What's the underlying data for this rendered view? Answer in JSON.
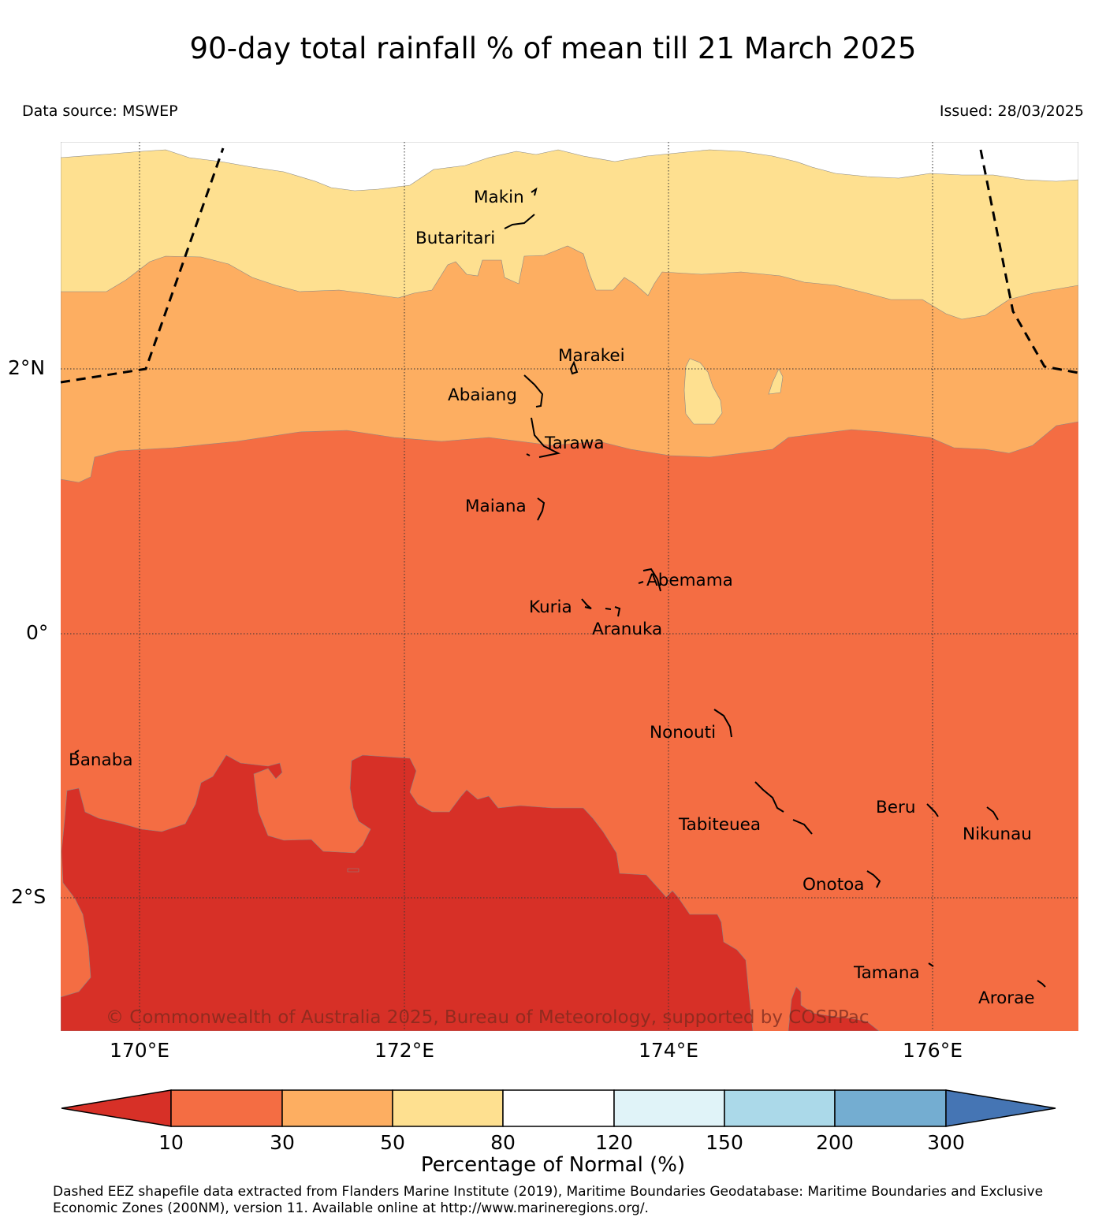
{
  "title": "90-day total rainfall % of mean till 21 March 2025",
  "data_source": "Data source: MSWEP",
  "issued": "Issued: 28/03/2025",
  "lat_labels": [
    "2°N",
    "0°",
    "2°S"
  ],
  "lon_labels": [
    "170°E",
    "172°E",
    "174°E",
    "176°E"
  ],
  "places": [
    "Makin",
    "Butaritari",
    "Marakei",
    "Abaiang",
    "Tarawa",
    "Maiana",
    "Abemama",
    "Kuria",
    "Aranuka",
    "Nonouti",
    "Banaba",
    "Beru",
    "Tabiteuea",
    "Nikunau",
    "Onotoa",
    "Tamana",
    "Arorae"
  ],
  "copyright": "© Commonwealth of Australia 2025, Bureau of Meteorology, supported by COSPPac",
  "colorbar": {
    "ticks": [
      "10",
      "30",
      "50",
      "80",
      "120",
      "150",
      "200",
      "300"
    ],
    "colors": [
      "#d73027",
      "#f46d43",
      "#fdae61",
      "#fee090",
      "#ffffff",
      "#e0f3f8",
      "#abd9e9",
      "#74add1",
      "#4575b4"
    ],
    "title": "Percentage of Normal (%)"
  },
  "footnote": "Dashed EEZ shapefile data extracted from Flanders Marine Institute (2019), Maritime Boundaries Geodatabase: Maritime Boundaries and Exclusive Economic Zones (200NM), version 11. Available online at http://www.marineregions.org/."
}
